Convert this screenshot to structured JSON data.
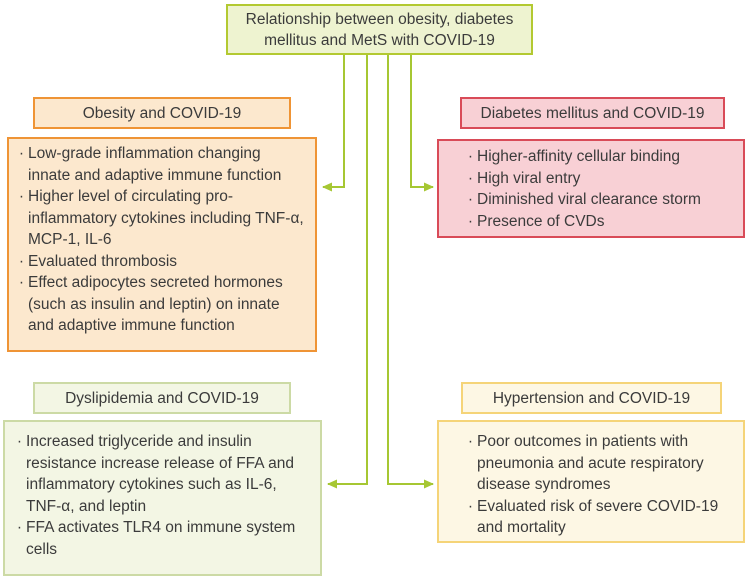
{
  "title": "Relationship between obesity, diabetes mellitus and MetS with COVID-19",
  "palette": {
    "connector": "#a6c733",
    "text": "#3b3b3b",
    "title": {
      "bg": "#eef3d0",
      "border": "#b3c931"
    },
    "obesity": {
      "bg": "#fce8ce",
      "border": "#ef9435"
    },
    "diabetes": {
      "bg": "#f8d0d5",
      "border": "#d94b58"
    },
    "dyslipidemia": {
      "bg": "#f3f6e4",
      "border": "#ccdaa5"
    },
    "hypertension": {
      "bg": "#fdf7e4",
      "border": "#f5d478"
    }
  },
  "boxes": {
    "obesity": {
      "header": "Obesity and COVID-19",
      "items": [
        "Low-grade inflammation changing innate and adaptive immune function",
        "Higher level of circulating pro-inflammatory cytokines including TNF-α, MCP-1, IL-6",
        "Evaluated thrombosis",
        "Effect adipocytes secreted hormones (such as insulin and leptin) on innate and adaptive immune function"
      ]
    },
    "diabetes": {
      "header": "Diabetes mellitus and COVID-19",
      "items": [
        "Higher-affinity cellular binding",
        "High viral entry",
        "Diminished viral clearance storm",
        "Presence of CVDs"
      ]
    },
    "dyslipidemia": {
      "header": "Dyslipidemia and COVID-19",
      "items": [
        "Increased triglyceride and insulin resistance increase release of FFA and inflammatory cytokines such as IL-6, TNF-α, and leptin",
        "FFA activates TLR4 on immune system cells"
      ]
    },
    "hypertension": {
      "header": "Hypertension and COVID-19",
      "items": [
        "Poor outcomes in patients with pneumonia and acute respiratory disease syndromes",
        "Evaluated risk of severe COVID-19 and mortality"
      ]
    }
  },
  "bullet_glyph": "·"
}
